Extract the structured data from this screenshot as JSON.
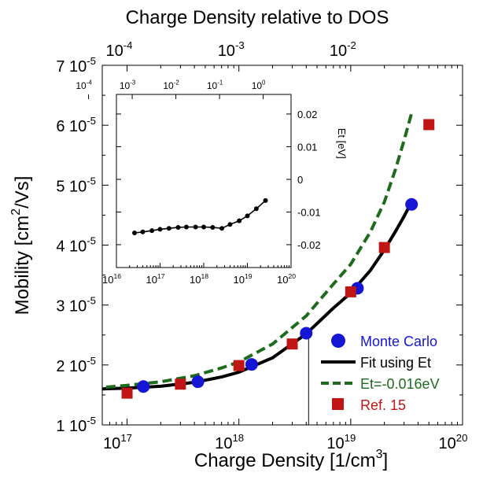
{
  "chart_data": [
    {
      "type": "scatter",
      "xlabel": "Charge Density [1/cm",
      "xlabel_sup": "3",
      "xlabel_end": "]",
      "ylabel": "Mobility [cm",
      "ylabel_sup": "2",
      "ylabel_end": "/Vs]",
      "top_axis_label": "Charge Density relative to DOS",
      "x_scale": "log",
      "xlim": [
        6e+16,
        1e+20
      ],
      "y_scale": "linear",
      "ylim": [
        1e-05,
        7e-05
      ],
      "x_ticks": [
        {
          "value": 1e+17,
          "base": "10",
          "exp": "17"
        },
        {
          "value": 1e+18,
          "base": "10",
          "exp": "18"
        },
        {
          "value": 1e+19,
          "base": "10",
          "exp": "19"
        },
        {
          "value": 1e+20,
          "base": "10",
          "exp": "20"
        }
      ],
      "y_ticks": [
        {
          "value": 1e-05,
          "mant": "1 10",
          "exp": "-5"
        },
        {
          "value": 2e-05,
          "mant": "2 10",
          "exp": "-5"
        },
        {
          "value": 3e-05,
          "mant": "3 10",
          "exp": "-5"
        },
        {
          "value": 4e-05,
          "mant": "4 10",
          "exp": "-5"
        },
        {
          "value": 5e-05,
          "mant": "5 10",
          "exp": "-5"
        },
        {
          "value": 6e-05,
          "mant": "6 10",
          "exp": "-5"
        },
        {
          "value": 7e-05,
          "mant": "7 10",
          "exp": "-5"
        }
      ],
      "top_ticks": [
        {
          "value": 1e+17,
          "base": "10",
          "exp": "-4"
        },
        {
          "value": 1e+18,
          "base": "10",
          "exp": "-3"
        },
        {
          "value": 1e+19,
          "base": "10",
          "exp": "-2"
        }
      ],
      "series": [
        {
          "name": "Monte Carlo",
          "kind": "points",
          "marker": "circle",
          "color": "#1515d6",
          "points": [
            [
              1.4e+17,
              1.64e-05
            ],
            [
              4.3e+17,
              1.72e-05
            ],
            [
              1.3e+18,
              2.01e-05
            ],
            [
              4e+18,
              2.53e-05
            ],
            [
              1.15e+19,
              3.28e-05
            ],
            [
              3.5e+19,
              4.68e-05
            ]
          ]
        },
        {
          "name": "Fit using Et",
          "kind": "line",
          "dash": "none",
          "color": "#000000",
          "points": [
            [
              6e+16,
              1.6e-05
            ],
            [
              1e+17,
              1.615e-05
            ],
            [
              2e+17,
              1.645e-05
            ],
            [
              4e+17,
              1.71e-05
            ],
            [
              7e+17,
              1.8e-05
            ],
            [
              1e+18,
              1.88e-05
            ],
            [
              2e+18,
              2.12e-05
            ],
            [
              4e+18,
              2.52e-05
            ],
            [
              7e+18,
              2.95e-05
            ],
            [
              1e+19,
              3.2e-05
            ],
            [
              1.5e+19,
              3.58e-05
            ],
            [
              2e+19,
              3.92e-05
            ],
            [
              2.5e+19,
              4.22e-05
            ],
            [
              3e+19,
              4.48e-05
            ],
            [
              3.5e+19,
              4.72e-05
            ]
          ]
        },
        {
          "name": "Et=-0.016eV",
          "kind": "line",
          "dash": "dashed",
          "color": "#1e6b1e",
          "points": [
            [
              6.5e+16,
              1.63e-05
            ],
            [
              1e+17,
              1.66e-05
            ],
            [
              2e+17,
              1.72e-05
            ],
            [
              4e+17,
              1.82e-05
            ],
            [
              7e+17,
              1.95e-05
            ],
            [
              1e+18,
              2.05e-05
            ],
            [
              2e+18,
              2.35e-05
            ],
            [
              4e+18,
              2.82e-05
            ],
            [
              7e+18,
              3.35e-05
            ],
            [
              1e+19,
              3.68e-05
            ],
            [
              1.5e+19,
              4.22e-05
            ],
            [
              2e+19,
              4.72e-05
            ],
            [
              2.5e+19,
              5.25e-05
            ],
            [
              3e+19,
              5.75e-05
            ],
            [
              3.5e+19,
              6.2e-05
            ]
          ]
        },
        {
          "name": "Ref. 15",
          "kind": "points",
          "marker": "square",
          "color": "#c01515",
          "points": [
            [
              1e+17,
              1.53e-05
            ],
            [
              3e+17,
              1.68e-05
            ],
            [
              1e+18,
              1.99e-05
            ],
            [
              3e+18,
              2.35e-05
            ],
            [
              1e+19,
              3.22e-05
            ],
            [
              2e+19,
              3.96e-05
            ],
            [
              5e+19,
              6.01e-05
            ]
          ]
        }
      ],
      "vertical_line": {
        "x": 4.2e+18,
        "y_from": 1e-05,
        "y_to": 2.53e-05
      },
      "legend_position": "bottom-right"
    },
    {
      "type": "line",
      "x_scale": "log",
      "xlim": [
        1e+16,
        1e+20
      ],
      "ylim": [
        -0.027,
        0.026
      ],
      "ylabel": "Et [eV]",
      "x_ticks": [
        {
          "value": 1e+16,
          "base": "10",
          "exp": "16"
        },
        {
          "value": 1e+17,
          "base": "10",
          "exp": "17"
        },
        {
          "value": 1e+18,
          "base": "10",
          "exp": "18"
        },
        {
          "value": 1e+19,
          "base": "10",
          "exp": "19"
        },
        {
          "value": 1e+20,
          "base": "10",
          "exp": "20"
        }
      ],
      "top_ticks": [
        {
          "value": 2300000000000000.0,
          "base": "10",
          "exp": "-4"
        },
        {
          "value": 2.3e+16,
          "base": "10",
          "exp": "-3"
        },
        {
          "value": 2.3e+17,
          "base": "10",
          "exp": "-2"
        },
        {
          "value": 2.3e+18,
          "base": "10",
          "exp": "-1"
        },
        {
          "value": 2.3e+19,
          "base": "10",
          "exp": "0",
          "plain": "10",
          "plain_label": "0"
        }
      ],
      "top_tick_labels_plain": {
        "last": "1"
      },
      "y_ticks": [
        {
          "value": 0.02,
          "label": "0.02"
        },
        {
          "value": 0.01,
          "label": "0.01"
        },
        {
          "value": 0.0,
          "label": "0"
        },
        {
          "value": -0.01,
          "label": "-0.01"
        },
        {
          "value": -0.02,
          "label": "-0.02"
        }
      ],
      "series": [
        {
          "marker": "dot",
          "color": "#000000",
          "points": [
            [
              2.6e+16,
              -0.0164
            ],
            [
              4e+16,
              -0.0161
            ],
            [
              6.5e+16,
              -0.0157
            ],
            [
              1e+17,
              -0.0153
            ],
            [
              1.6e+17,
              -0.015
            ],
            [
              2.6e+17,
              -0.0147
            ],
            [
              4e+17,
              -0.0146
            ],
            [
              6.5e+17,
              -0.0146
            ],
            [
              1e+18,
              -0.0146
            ],
            [
              1.6e+18,
              -0.0147
            ],
            [
              2.6e+18,
              -0.015
            ],
            [
              4e+18,
              -0.0138
            ],
            [
              6.5e+18,
              -0.0127
            ],
            [
              1e+19,
              -0.0112
            ],
            [
              1.6e+19,
              -0.009
            ],
            [
              2.6e+19,
              -0.0065
            ]
          ]
        }
      ]
    }
  ],
  "legend": [
    {
      "label": "Monte Carlo",
      "color": "#1515d6",
      "text_color": "#1515d6",
      "symbol": "circle"
    },
    {
      "label": "Fit using Et",
      "color": "#000000",
      "text_color": "#000000",
      "symbol": "line"
    },
    {
      "label": "Et=-0.016eV",
      "color": "#1e6b1e",
      "text_color": "#1e6b1e",
      "symbol": "dash"
    },
    {
      "label": "Ref. 15",
      "color": "#c01515",
      "text_color": "#c01515",
      "symbol": "square"
    }
  ]
}
